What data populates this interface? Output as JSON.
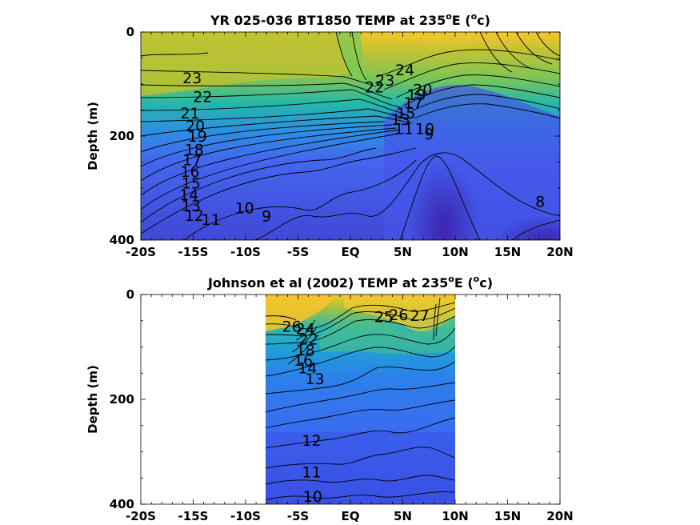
{
  "chart_data": [
    {
      "type": "heatmap",
      "title_main": "YR 025-036 BT1850 TEMP at 235",
      "title_deg": "o",
      "title_unit_pre": "E (",
      "title_unit_sup": "o",
      "title_unit_post": "c)",
      "ylabel": "Depth (m)",
      "xlim": [
        -20,
        20
      ],
      "ylim": [
        0,
        400
      ],
      "y_reversed": true,
      "x_ticks": [
        {
          "v": -20,
          "label": "-20S"
        },
        {
          "v": -15,
          "label": "-15S"
        },
        {
          "v": -10,
          "label": "-10S"
        },
        {
          "v": -5,
          "label": "-5S"
        },
        {
          "v": 0,
          "label": "EQ"
        },
        {
          "v": 5,
          "label": "5N"
        },
        {
          "v": 10,
          "label": "10N"
        },
        {
          "v": 15,
          "label": "15N"
        },
        {
          "v": 20,
          "label": "20N"
        }
      ],
      "y_ticks": [
        {
          "v": 0,
          "label": "0"
        },
        {
          "v": 200,
          "label": "200"
        },
        {
          "v": 400,
          "label": "400"
        }
      ],
      "data_extent_x": [
        -20,
        20
      ],
      "colormap": [
        "#3a22b0",
        "#4a4ff0",
        "#2f88e8",
        "#1fb8b8",
        "#6cc660",
        "#c4c030",
        "#f8c830"
      ],
      "value_range": [
        7,
        26
      ],
      "contour_labels": [
        {
          "x": -15.1,
          "y": 88,
          "label": "23"
        },
        {
          "x": -14.1,
          "y": 124,
          "label": "22"
        },
        {
          "x": -15.3,
          "y": 155,
          "label": "21"
        },
        {
          "x": -14.8,
          "y": 180,
          "label": "20"
        },
        {
          "x": -14.6,
          "y": 200,
          "label": "19"
        },
        {
          "x": -14.9,
          "y": 225,
          "label": "18"
        },
        {
          "x": -15.1,
          "y": 245,
          "label": "17"
        },
        {
          "x": -15.3,
          "y": 268,
          "label": "16"
        },
        {
          "x": -15.2,
          "y": 290,
          "label": "15"
        },
        {
          "x": -15.4,
          "y": 312,
          "label": "14"
        },
        {
          "x": -15.2,
          "y": 333,
          "label": "13"
        },
        {
          "x": -14.9,
          "y": 352,
          "label": "12"
        },
        {
          "x": -13.3,
          "y": 360,
          "label": "11"
        },
        {
          "x": -10.1,
          "y": 338,
          "label": "10"
        },
        {
          "x": -8.0,
          "y": 353,
          "label": "9"
        },
        {
          "x": 5.2,
          "y": 72,
          "label": "24"
        },
        {
          "x": 3.3,
          "y": 92,
          "label": "23"
        },
        {
          "x": 2.3,
          "y": 105,
          "label": "22"
        },
        {
          "x": 6.9,
          "y": 110,
          "label": "20"
        },
        {
          "x": 6.3,
          "y": 120,
          "label": "19"
        },
        {
          "x": 6.0,
          "y": 135,
          "label": "17"
        },
        {
          "x": 5.3,
          "y": 155,
          "label": "15"
        },
        {
          "x": 4.8,
          "y": 168,
          "label": "13"
        },
        {
          "x": 5.1,
          "y": 185,
          "label": "11"
        },
        {
          "x": 7.1,
          "y": 185,
          "label": "10"
        },
        {
          "x": 7.5,
          "y": 195,
          "label": "9"
        },
        {
          "x": 18.1,
          "y": 325,
          "label": "8"
        }
      ]
    },
    {
      "type": "heatmap",
      "title_main": "Johnson et al (2002) TEMP at 235",
      "title_deg": "o",
      "title_unit_pre": "E (",
      "title_unit_sup": "o",
      "title_unit_post": "c)",
      "ylabel": "Depth (m)",
      "xlim": [
        -20,
        20
      ],
      "ylim": [
        0,
        400
      ],
      "y_reversed": true,
      "x_ticks": [
        {
          "v": -20,
          "label": "-20S"
        },
        {
          "v": -15,
          "label": "-15S"
        },
        {
          "v": -10,
          "label": "-10S"
        },
        {
          "v": -5,
          "label": "-5S"
        },
        {
          "v": 0,
          "label": "EQ"
        },
        {
          "v": 5,
          "label": "5N"
        },
        {
          "v": 10,
          "label": "10N"
        },
        {
          "v": 15,
          "label": "15N"
        },
        {
          "v": 20,
          "label": "20N"
        }
      ],
      "y_ticks": [
        {
          "v": 0,
          "label": "0"
        },
        {
          "v": 200,
          "label": "200"
        },
        {
          "v": 400,
          "label": "400"
        }
      ],
      "data_extent_x": [
        -8,
        10
      ],
      "colormap": [
        "#3a22b0",
        "#4a4ff0",
        "#2f88e8",
        "#1fb8b8",
        "#6cc660",
        "#c4c030",
        "#f8c830"
      ],
      "value_range": [
        8,
        28
      ],
      "contour_labels": [
        {
          "x": -5.6,
          "y": 60,
          "label": "26"
        },
        {
          "x": -4.3,
          "y": 65,
          "label": "24"
        },
        {
          "x": -4.0,
          "y": 85,
          "label": "22"
        },
        {
          "x": -4.3,
          "y": 105,
          "label": "18"
        },
        {
          "x": -4.5,
          "y": 125,
          "label": "16"
        },
        {
          "x": -4.1,
          "y": 140,
          "label": "14"
        },
        {
          "x": -3.4,
          "y": 160,
          "label": "13"
        },
        {
          "x": 3.2,
          "y": 42,
          "label": "25"
        },
        {
          "x": 4.6,
          "y": 38,
          "label": "26"
        },
        {
          "x": 6.6,
          "y": 40,
          "label": "27"
        },
        {
          "x": -3.7,
          "y": 278,
          "label": "12"
        },
        {
          "x": -3.7,
          "y": 338,
          "label": "11"
        },
        {
          "x": -3.6,
          "y": 385,
          "label": "10"
        }
      ]
    }
  ]
}
